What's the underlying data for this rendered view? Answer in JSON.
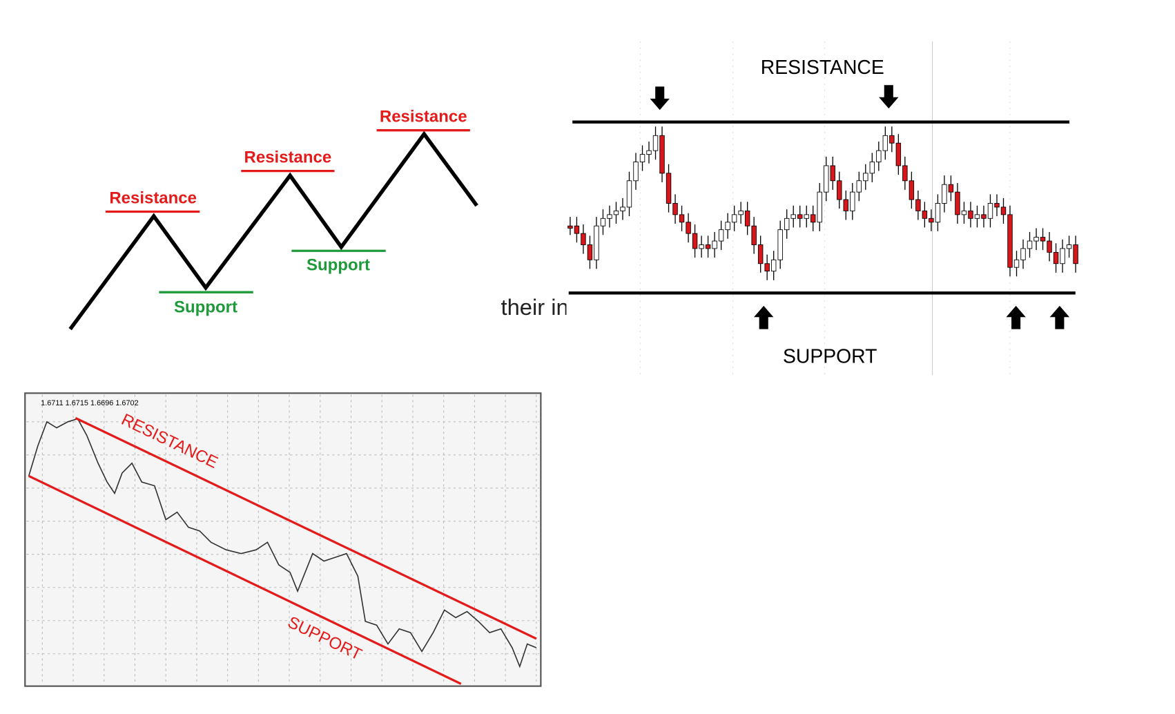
{
  "diagram1": {
    "resistance_labels": [
      "Resistance",
      "Resistance",
      "Resistance"
    ],
    "support_labels": [
      "Support",
      "Support"
    ]
  },
  "background_text": "their instruments.",
  "diagram2": {
    "resistance": "RESISTANCE",
    "support": "SUPPORT"
  },
  "diagram3": {
    "price_header": "1.6711 1.6715 1.6696 1.6702",
    "resistance": "RESISTANCE",
    "support": "SUPPORT"
  }
}
